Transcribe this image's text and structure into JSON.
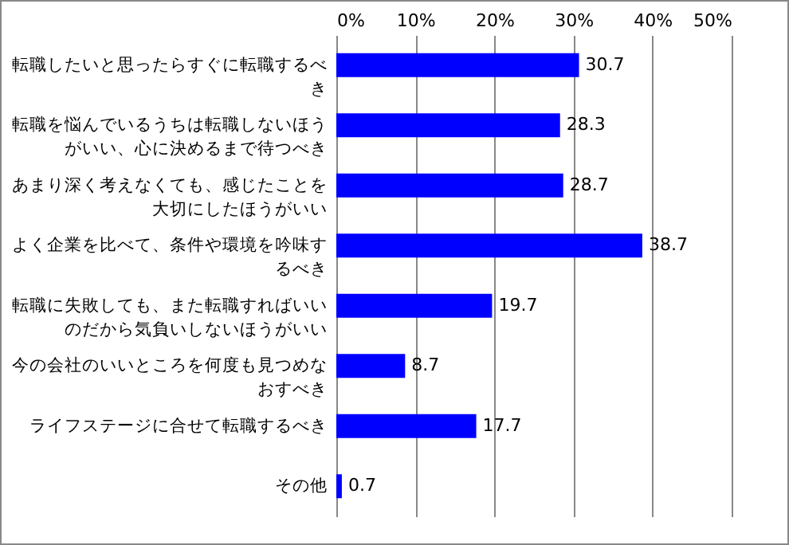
{
  "chart_data": {
    "type": "bar",
    "orientation": "horizontal",
    "categories": [
      "転職したいと思ったらすぐに転職するべき",
      "転職を悩んでいるうちは転職しないほうがいい、心に決めるまで待つべき",
      "あまり深く考えなくても、感じたことを大切にしたほうがいい",
      "よく企業を比べて、条件や環境を吟味するべき",
      "転職に失敗しても、また転職すればいいのだから気負いしないほうがいい",
      "今の会社のいいところを何度も見つめなおすべき",
      "ライフステージに合せて転職するべき",
      "その他"
    ],
    "values": [
      30.7,
      28.3,
      28.7,
      38.7,
      19.7,
      8.7,
      17.7,
      0.7
    ],
    "color": "#0000ff",
    "xlim": [
      0,
      50
    ],
    "xticks": [
      {
        "value": 0,
        "label": "0%"
      },
      {
        "value": 10,
        "label": "10%"
      },
      {
        "value": 20,
        "label": "20%"
      },
      {
        "value": 30,
        "label": "30%"
      },
      {
        "value": 40,
        "label": "40%"
      },
      {
        "value": 50,
        "label": "50%"
      }
    ],
    "grid": true,
    "data_labels": true
  }
}
